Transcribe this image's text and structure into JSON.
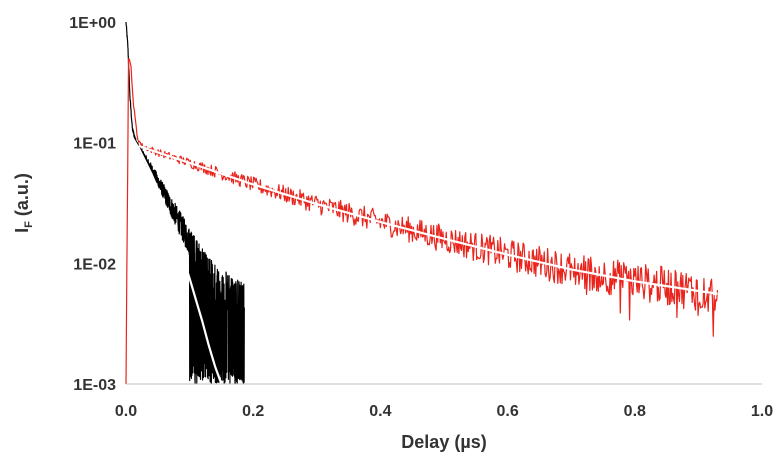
{
  "chart_data": {
    "type": "line",
    "title": "",
    "xlabel": "Delay (µs)",
    "ylabel": {
      "main": "I",
      "subscript": "F",
      "suffix": " (a.u.)"
    },
    "xlim": [
      0,
      1.0
    ],
    "ylim": [
      0.001,
      1
    ],
    "yscale": "log",
    "grid": false,
    "legend": "none",
    "x_ticks": [
      0,
      0.2,
      0.4,
      0.6,
      0.8,
      1.0
    ],
    "x_tick_labels": [
      "0.0",
      "0.2",
      "0.4",
      "0.6",
      "0.8",
      "1.0"
    ],
    "y_ticks": [
      1,
      0.1,
      0.01,
      0.001
    ],
    "y_tick_labels": [
      "1E+00",
      "1E-01",
      "1E-02",
      "1E-03"
    ],
    "series": [
      {
        "color": "#000000",
        "kind": "noisy-data",
        "x": [
          0.0,
          0.003,
          0.006,
          0.01,
          0.015,
          0.02,
          0.03,
          0.04,
          0.05,
          0.06,
          0.07,
          0.08,
          0.09,
          0.1,
          0.11,
          0.12,
          0.13,
          0.14,
          0.15,
          0.16,
          0.17,
          0.18,
          0.186
        ],
        "y": [
          1.0,
          0.62,
          0.25,
          0.13,
          0.105,
          0.092,
          0.074,
          0.06,
          0.048,
          0.038,
          0.03,
          0.024,
          0.019,
          0.015,
          0.012,
          0.0095,
          0.008,
          0.007,
          0.0062,
          0.0056,
          0.0052,
          0.0048,
          0.0046
        ]
      },
      {
        "color": "#ffffff",
        "kind": "fit",
        "x": [
          0.01,
          0.02,
          0.04,
          0.06,
          0.08,
          0.1,
          0.12,
          0.13,
          0.14,
          0.15
        ],
        "y": [
          0.11,
          0.09,
          0.055,
          0.031,
          0.016,
          0.0075,
          0.0033,
          0.0021,
          0.0014,
          0.001
        ]
      },
      {
        "color": "#e8241c",
        "kind": "noisy-data",
        "x": [
          0.0,
          0.004,
          0.008,
          0.012,
          0.018,
          0.025,
          0.05,
          0.1,
          0.2,
          0.3,
          0.4,
          0.5,
          0.6,
          0.7,
          0.8,
          0.9,
          0.93
        ],
        "y": [
          0.001,
          0.5,
          0.42,
          0.2,
          0.11,
          0.094,
          0.083,
          0.068,
          0.045,
          0.031,
          0.022,
          0.016,
          0.0118,
          0.0089,
          0.0071,
          0.0059,
          0.0056
        ]
      },
      {
        "color": "#ffffff",
        "kind": "fit",
        "x": [
          0.02,
          0.05,
          0.1,
          0.2,
          0.3,
          0.4,
          0.5,
          0.6,
          0.7,
          0.8,
          0.9,
          0.93
        ],
        "y": [
          0.094,
          0.083,
          0.068,
          0.045,
          0.031,
          0.022,
          0.016,
          0.0118,
          0.0089,
          0.0071,
          0.0059,
          0.0056
        ]
      }
    ]
  }
}
